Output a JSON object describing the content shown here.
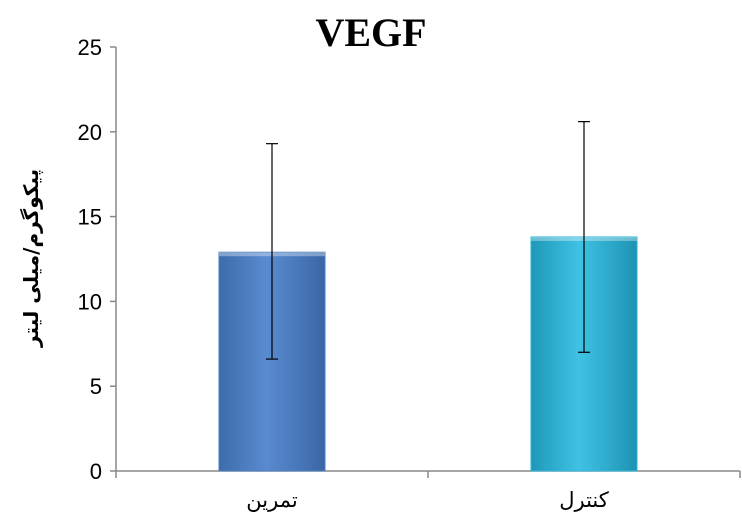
{
  "chart_data": {
    "type": "bar",
    "title": "VEGF",
    "xlabel": "",
    "ylabel": "پیکوگرم/میلی لیتر",
    "categories": [
      "تمرین",
      "کنترل"
    ],
    "values": [
      12.9,
      13.8
    ],
    "error_bars": [
      {
        "low": 6.6,
        "high": 19.3
      },
      {
        "low": 7.0,
        "high": 20.6
      }
    ],
    "ylim": [
      0,
      25
    ],
    "yticks": [
      "0",
      "5",
      "10",
      "15",
      "20",
      "25"
    ],
    "grid": false,
    "legend": "none",
    "colors": [
      "#4F81BD",
      "#31B6D8"
    ]
  }
}
